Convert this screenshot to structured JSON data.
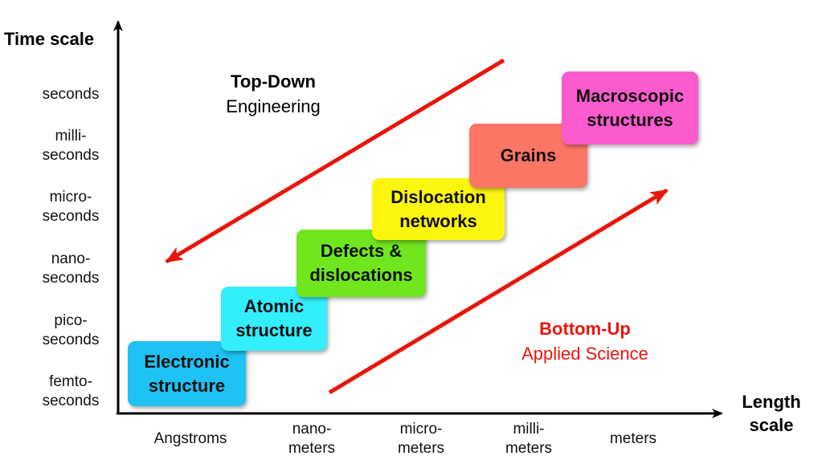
{
  "axes": {
    "y_title": "Time scale",
    "x_title_line1": "Length",
    "x_title_line2": "scale",
    "y_ticks": [
      {
        "l1": "seconds",
        "l2": ""
      },
      {
        "l1": "milli-",
        "l2": "seconds"
      },
      {
        "l1": "micro-",
        "l2": "seconds"
      },
      {
        "l1": "nano-",
        "l2": "seconds"
      },
      {
        "l1": "pico-",
        "l2": "seconds"
      },
      {
        "l1": "femto-",
        "l2": "seconds"
      }
    ],
    "x_ticks": [
      {
        "l1": "Angstroms",
        "l2": ""
      },
      {
        "l1": "nano-",
        "l2": "meters"
      },
      {
        "l1": "micro-",
        "l2": "meters"
      },
      {
        "l1": "milli-",
        "l2": "meters"
      },
      {
        "l1": "meters",
        "l2": ""
      }
    ]
  },
  "boxes": [
    {
      "l1": "Electronic",
      "l2": "structure",
      "color": "#1EC2F4"
    },
    {
      "l1": "Atomic",
      "l2": "structure",
      "color": "#33EEFD"
    },
    {
      "l1": "Defects &",
      "l2": "dislocations",
      "color": "#6FE61D"
    },
    {
      "l1": "Dislocation",
      "l2": "networks",
      "color": "#FCF60F"
    },
    {
      "l1": "Grains",
      "l2": "",
      "color": "#FC7565"
    },
    {
      "l1": "Macroscopic",
      "l2": "structures",
      "color": "#FC5BCD"
    }
  ],
  "top_down": {
    "title": "Top-Down",
    "subtitle": "Engineering",
    "color": "#000000"
  },
  "bottom_up": {
    "title": "Bottom-Up",
    "subtitle": "Applied Science",
    "color": "#E8160C"
  },
  "arrow_color": "#E8160C",
  "axis_color": "#000000"
}
